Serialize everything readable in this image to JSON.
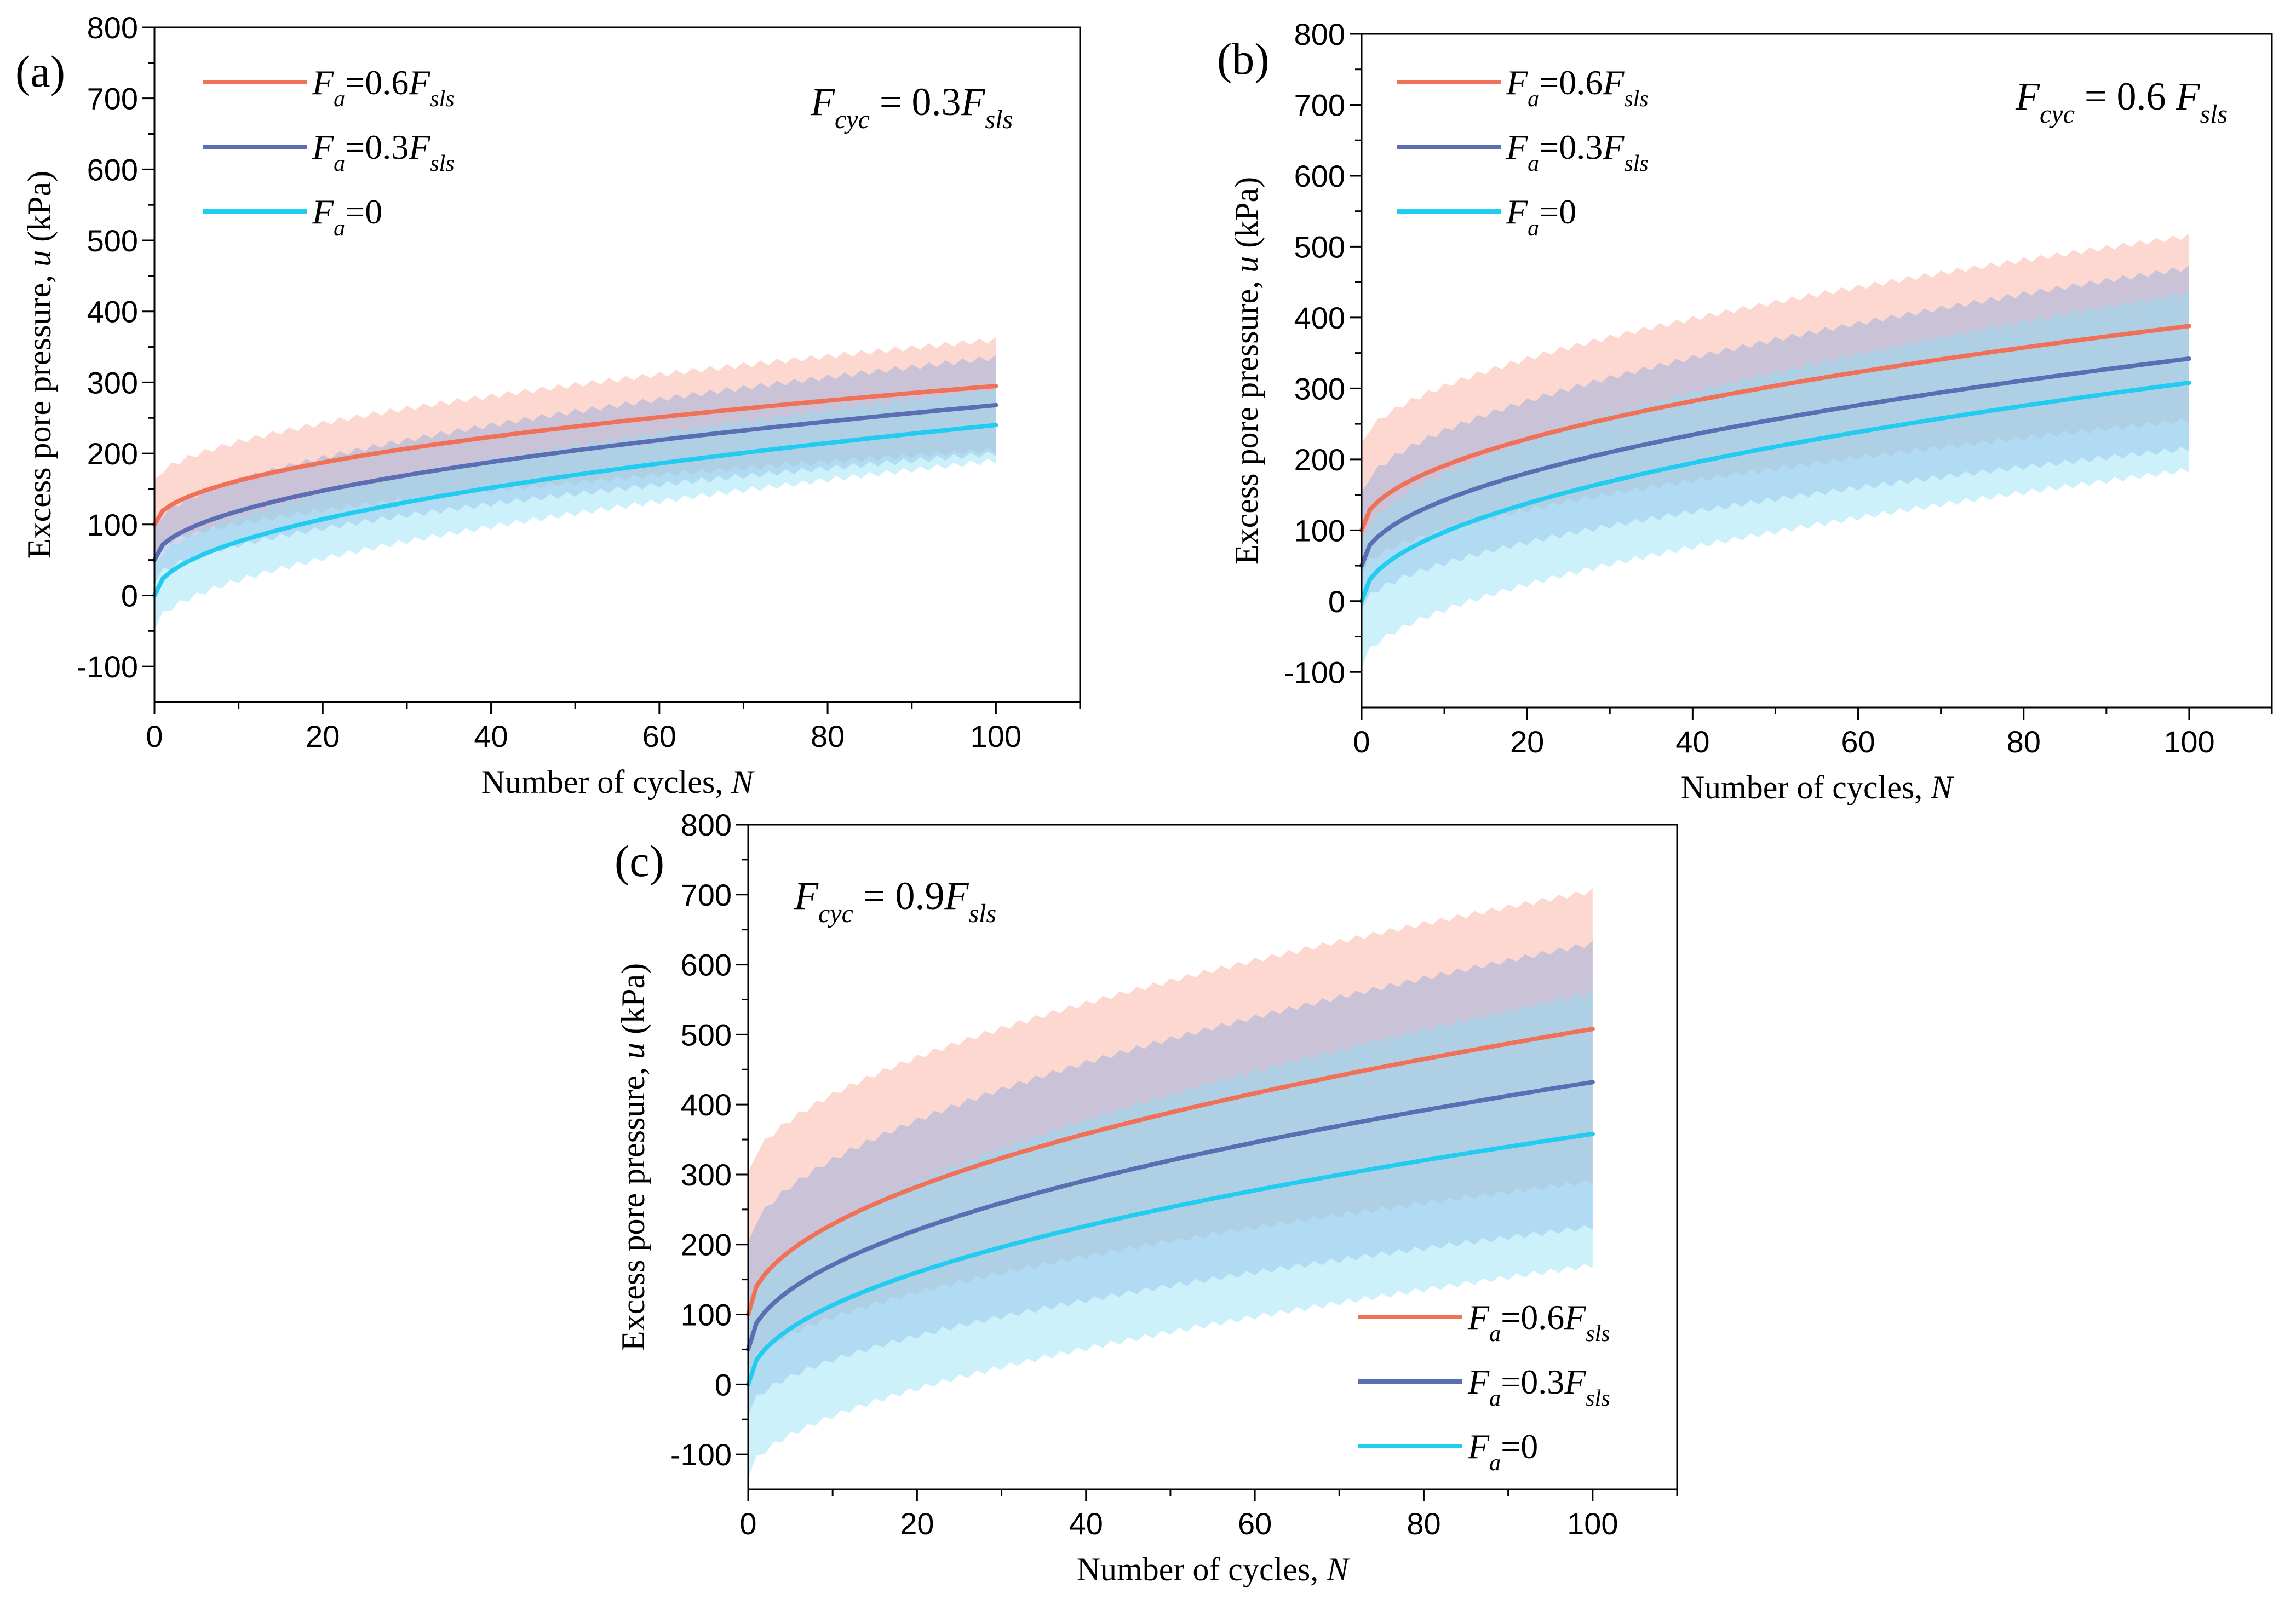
{
  "colors": {
    "Fa_0.6": "#f07158",
    "Fa_0.3": "#5c6eb3",
    "Fa_0": "#22ccf0",
    "band_0.6": "#f8a99a",
    "band_0.3": "#8fa9de",
    "band_0": "#8ee1f7"
  },
  "chart_data": [
    {
      "type": "line",
      "panel_label": "(a)",
      "annotation": {
        "base": "F",
        "sub": "cyc",
        "mid": " = 0.3",
        "base2": "F",
        "sub2": "sls"
      },
      "xlabel": "Number of cycles, N",
      "ylabel": "Excess pore pressure, u (kPa)",
      "xlim": [
        0,
        110
      ],
      "ylim": [
        -150,
        800
      ],
      "xticks": [
        "0",
        "20",
        "40",
        "60",
        "80",
        "100"
      ],
      "yticks": [
        "-100",
        "0",
        "100",
        "200",
        "300",
        "400",
        "500",
        "600",
        "700",
        "800"
      ],
      "legend_position": "top-left",
      "series": [
        {
          "name": "Fa=0.6Fsls",
          "legend": {
            "base": "F",
            "sub": "a",
            "eq": "=0.6",
            "base2": "F",
            "sub2": "sls"
          },
          "color_key": "Fa_0.6",
          "u0": 100,
          "u100": 295,
          "band_low_end": 205,
          "band_high_end": 360,
          "band_low_start": 60,
          "band_high_start": 160
        },
        {
          "name": "Fa=0.3Fsls",
          "legend": {
            "base": "F",
            "sub": "a",
            "eq": "=0.3",
            "base2": "F",
            "sub2": "sls"
          },
          "color_key": "Fa_0.3",
          "u0": 50,
          "u100": 268,
          "band_low_end": 200,
          "band_high_end": 335,
          "band_low_start": 20,
          "band_high_start": 95
        },
        {
          "name": "Fa=0",
          "legend": {
            "base": "F",
            "sub": "a",
            "eq": "=0",
            "base2": "",
            "sub2": ""
          },
          "color_key": "Fa_0",
          "u0": 0,
          "u100": 240,
          "band_low_end": 190,
          "band_high_end": 290,
          "band_low_start": -45,
          "band_high_start": 40
        }
      ]
    },
    {
      "type": "line",
      "panel_label": "(b)",
      "annotation": {
        "base": "F",
        "sub": "cyc",
        "mid": " = 0.6 ",
        "base2": "F",
        "sub2": "sls"
      },
      "xlabel": "Number of cycles, N",
      "ylabel": "Excess pore pressure, u (kPa)",
      "xlim": [
        0,
        110
      ],
      "ylim": [
        -150,
        800
      ],
      "xticks": [
        "0",
        "20",
        "40",
        "60",
        "80",
        "100"
      ],
      "yticks": [
        "-100",
        "0",
        "100",
        "200",
        "300",
        "400",
        "500",
        "600",
        "700",
        "800"
      ],
      "legend_position": "top-left",
      "series": [
        {
          "name": "Fa=0.6Fsls",
          "legend": {
            "base": "F",
            "sub": "a",
            "eq": "=0.6",
            "base2": "F",
            "sub2": "sls"
          },
          "color_key": "Fa_0.6",
          "u0": 100,
          "u100": 388,
          "band_low_end": 255,
          "band_high_end": 515,
          "band_low_start": 40,
          "band_high_start": 220
        },
        {
          "name": "Fa=0.3Fsls",
          "legend": {
            "base": "F",
            "sub": "a",
            "eq": "=0.3",
            "base2": "F",
            "sub2": "sls"
          },
          "color_key": "Fa_0.3",
          "u0": 50,
          "u100": 342,
          "band_low_end": 215,
          "band_high_end": 470,
          "band_low_start": -10,
          "band_high_start": 150
        },
        {
          "name": "Fa=0",
          "legend": {
            "base": "F",
            "sub": "a",
            "eq": "=0",
            "base2": "",
            "sub2": ""
          },
          "color_key": "Fa_0",
          "u0": 0,
          "u100": 308,
          "band_low_end": 185,
          "band_high_end": 435,
          "band_low_start": -90,
          "band_high_start": 80
        }
      ]
    },
    {
      "type": "line",
      "panel_label": "(c)",
      "annotation": {
        "base": "F",
        "sub": "cyc",
        "mid": " = 0.9",
        "base2": "F",
        "sub2": "sls"
      },
      "xlabel": "Number of cycles, N",
      "ylabel": "Excess pore pressure, u (kPa)",
      "xlim": [
        0,
        110
      ],
      "ylim": [
        -150,
        800
      ],
      "xticks": [
        "0",
        "20",
        "40",
        "60",
        "80",
        "100"
      ],
      "yticks": [
        "-100",
        "0",
        "100",
        "200",
        "300",
        "400",
        "500",
        "600",
        "700",
        "800"
      ],
      "legend_position": "bottom-right",
      "series": [
        {
          "name": "Fa=0.6Fsls",
          "legend": {
            "base": "F",
            "sub": "a",
            "eq": "=0.6",
            "base2": "F",
            "sub2": "sls"
          },
          "color_key": "Fa_0.6",
          "u0": 100,
          "u100": 508,
          "band_low_end": 290,
          "band_high_end": 705,
          "band_low_start": 20,
          "band_high_start": 300
        },
        {
          "name": "Fa=0.3Fsls",
          "legend": {
            "base": "F",
            "sub": "a",
            "eq": "=0.3",
            "base2": "F",
            "sub2": "sls"
          },
          "color_key": "Fa_0.3",
          "u0": 50,
          "u100": 432,
          "band_low_end": 225,
          "band_high_end": 630,
          "band_low_start": -40,
          "band_high_start": 200
        },
        {
          "name": "Fa=0",
          "legend": {
            "base": "F",
            "sub": "a",
            "eq": "=0",
            "base2": "",
            "sub2": ""
          },
          "color_key": "Fa_0",
          "u0": 0,
          "u100": 358,
          "band_low_end": 170,
          "band_high_end": 560,
          "band_low_start": -130,
          "band_high_start": 100
        }
      ]
    }
  ]
}
